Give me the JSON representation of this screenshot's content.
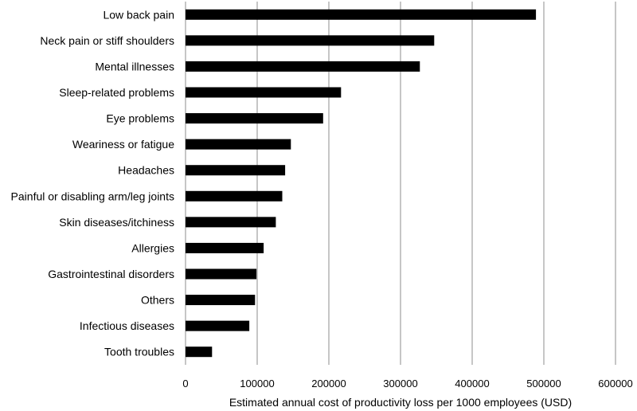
{
  "chart_data": {
    "type": "bar",
    "orientation": "horizontal",
    "categories": [
      "Low back pain",
      "Neck pain or stiff shoulders",
      "Mental illnesses",
      "Sleep-related problems",
      "Eye problems",
      "Weariness or fatigue",
      "Headaches",
      "Painful or disabling arm/leg joints",
      "Skin diseases/itchiness",
      "Allergies",
      "Gastrointestinal disorders",
      "Others",
      "Infectious diseases",
      "Tooth troubles"
    ],
    "values": [
      489000,
      347000,
      327000,
      217000,
      192000,
      147000,
      139000,
      135000,
      126000,
      109000,
      99000,
      97000,
      89000,
      37000
    ],
    "xticks": [
      "0",
      "100000",
      "200000",
      "300000",
      "400000",
      "500000",
      "600000"
    ],
    "xlim": [
      0,
      600000
    ],
    "xlabel": "Estimated annual cost of productivity loss per 1000 employees (USD)",
    "ylabel": "",
    "title": "",
    "grid": "vertical",
    "legend": "none",
    "bar_color": "#000000",
    "grid_color": "#8c8c8c"
  }
}
